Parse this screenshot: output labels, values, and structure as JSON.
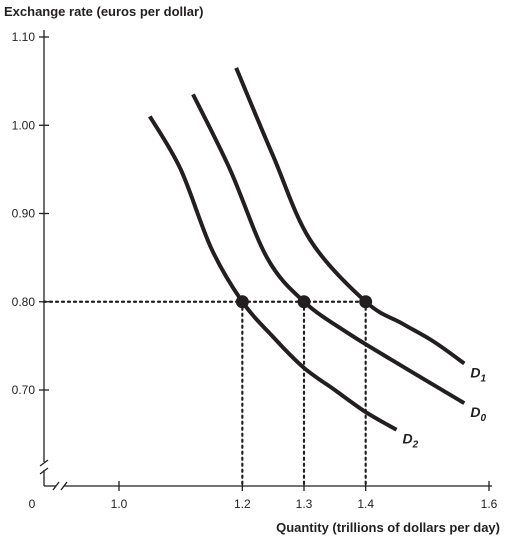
{
  "chart_data": {
    "type": "line",
    "title": "",
    "ylabel": "Exchange rate (euros per dollar)",
    "xlabel": "Quantity (trillions of dollars per day)",
    "origin_label": "0",
    "xlim": [
      1.0,
      1.6
    ],
    "ylim": [
      0.6,
      1.1
    ],
    "x_ticks": [
      {
        "value": 1.0,
        "label": "1.0"
      },
      {
        "value": 1.2,
        "label": "1.2"
      },
      {
        "value": 1.3,
        "label": "1.3"
      },
      {
        "value": 1.4,
        "label": "1.4"
      },
      {
        "value": 1.6,
        "label": "1.6"
      }
    ],
    "y_ticks": [
      {
        "value": 0.7,
        "label": "0.70"
      },
      {
        "value": 0.8,
        "label": "0.80"
      },
      {
        "value": 0.9,
        "label": "0.90"
      },
      {
        "value": 1.0,
        "label": "1.00"
      },
      {
        "value": 1.1,
        "label": "1.10"
      }
    ],
    "series": [
      {
        "name": "D",
        "subscript": "2",
        "x": [
          1.05,
          1.1,
          1.15,
          1.2,
          1.25,
          1.3,
          1.35,
          1.4,
          1.45
        ],
        "y": [
          1.01,
          0.95,
          0.86,
          0.8,
          0.76,
          0.725,
          0.7,
          0.675,
          0.655
        ]
      },
      {
        "name": "D",
        "subscript": "0",
        "x": [
          1.12,
          1.18,
          1.24,
          1.3,
          1.37,
          1.44,
          1.5,
          1.56
        ],
        "y": [
          1.035,
          0.95,
          0.85,
          0.8,
          0.765,
          0.735,
          0.71,
          0.685
        ]
      },
      {
        "name": "D",
        "subscript": "1",
        "x": [
          1.19,
          1.25,
          1.31,
          1.4,
          1.46,
          1.51,
          1.56
        ],
        "y": [
          1.065,
          0.965,
          0.87,
          0.8,
          0.775,
          0.755,
          0.73
        ]
      }
    ],
    "equilibrium_points": [
      {
        "x": 1.2,
        "y": 0.8
      },
      {
        "x": 1.3,
        "y": 0.8
      },
      {
        "x": 1.4,
        "y": 0.8
      }
    ],
    "reference_line_y": 0.8,
    "colors": {
      "ink": "#231f20",
      "background": "#ffffff"
    }
  }
}
